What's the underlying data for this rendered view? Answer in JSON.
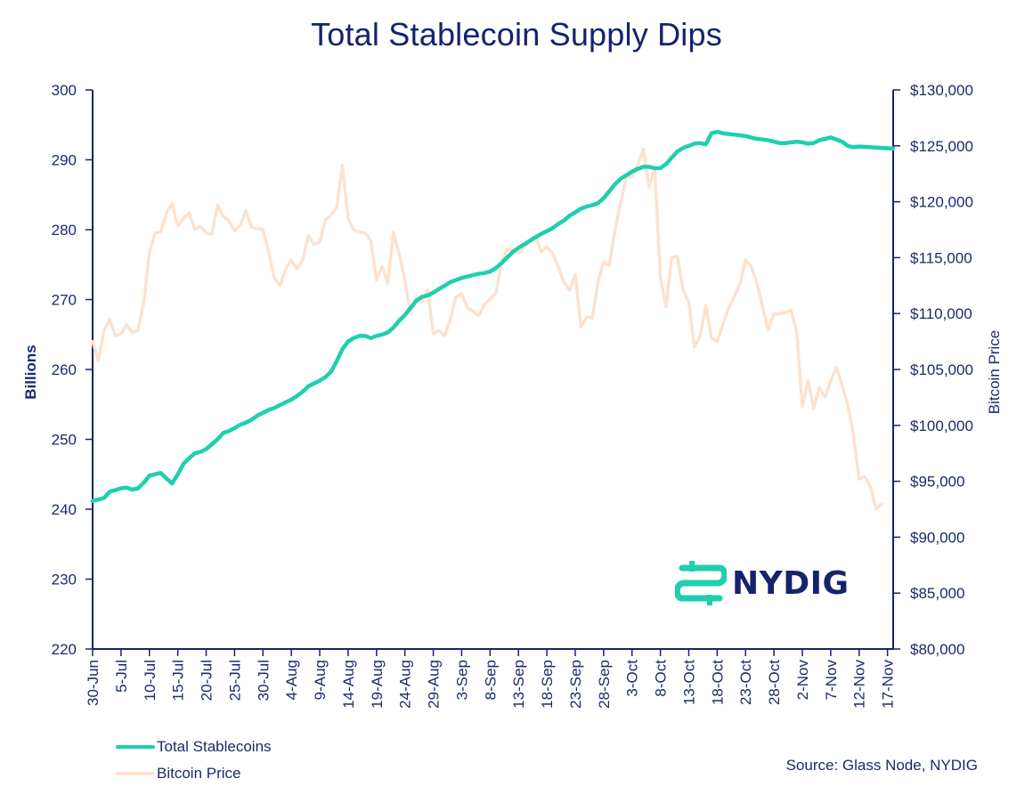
{
  "colors": {
    "stablecoins": "#1fcfae",
    "bitcoin": "#fbe2d0",
    "axis": "#16226b",
    "text": "#1b2a6b"
  },
  "legend": {
    "stablecoins_label": "Total Stablecoins",
    "bitcoin_label": "Bitcoin Price"
  },
  "source": "Source: Glass Node, NYDIG",
  "logo": {
    "text": "NYDIG",
    "icon": "nydig-dollar-icon"
  },
  "chart_data": {
    "type": "line",
    "title": "Total Stablecoin Supply Dips",
    "xlabel": "",
    "ylabel": "Billions",
    "y2label": "Bitcoin Price",
    "ylim": [
      220,
      300
    ],
    "y2lim": [
      80000,
      130000
    ],
    "yticks": [
      "220",
      "230",
      "240",
      "250",
      "260",
      "270",
      "280",
      "290",
      "300"
    ],
    "y2ticks": [
      "$80,000",
      "$85,000",
      "$90,000",
      "$95,000",
      "$100,000",
      "$105,000",
      "$110,000",
      "$115,000",
      "$120,000",
      "$125,000",
      "$130,000"
    ],
    "x_range_days": [
      0,
      141
    ],
    "xticks": [
      {
        "day": 0,
        "label": "30-Jun"
      },
      {
        "day": 5,
        "label": "5-Jul"
      },
      {
        "day": 10,
        "label": "10-Jul"
      },
      {
        "day": 15,
        "label": "15-Jul"
      },
      {
        "day": 20,
        "label": "20-Jul"
      },
      {
        "day": 25,
        "label": "25-Jul"
      },
      {
        "day": 30,
        "label": "30-Jul"
      },
      {
        "day": 35,
        "label": "4-Aug"
      },
      {
        "day": 40,
        "label": "9-Aug"
      },
      {
        "day": 45,
        "label": "14-Aug"
      },
      {
        "day": 50,
        "label": "19-Aug"
      },
      {
        "day": 55,
        "label": "24-Aug"
      },
      {
        "day": 60,
        "label": "29-Aug"
      },
      {
        "day": 65,
        "label": "3-Sep"
      },
      {
        "day": 70,
        "label": "8-Sep"
      },
      {
        "day": 75,
        "label": "13-Sep"
      },
      {
        "day": 80,
        "label": "18-Sep"
      },
      {
        "day": 85,
        "label": "23-Sep"
      },
      {
        "day": 90,
        "label": "28-Sep"
      },
      {
        "day": 95,
        "label": "3-Oct"
      },
      {
        "day": 100,
        "label": "8-Oct"
      },
      {
        "day": 105,
        "label": "13-Oct"
      },
      {
        "day": 110,
        "label": "18-Oct"
      },
      {
        "day": 115,
        "label": "23-Oct"
      },
      {
        "day": 120,
        "label": "28-Oct"
      },
      {
        "day": 125,
        "label": "2-Nov"
      },
      {
        "day": 130,
        "label": "7-Nov"
      },
      {
        "day": 135,
        "label": "12-Nov"
      },
      {
        "day": 140,
        "label": "17-Nov"
      }
    ],
    "series": [
      {
        "name": "Total Stablecoins",
        "axis": "left",
        "points": [
          [
            0,
            241.2
          ],
          [
            2,
            241.6
          ],
          [
            3,
            242.5
          ],
          [
            5,
            243.0
          ],
          [
            6,
            243.1
          ],
          [
            7,
            242.8
          ],
          [
            8,
            243.0
          ],
          [
            9,
            243.8
          ],
          [
            10,
            244.8
          ],
          [
            12,
            245.2
          ],
          [
            13,
            244.4
          ],
          [
            14,
            243.7
          ],
          [
            15,
            245.0
          ],
          [
            16,
            246.5
          ],
          [
            17,
            247.3
          ],
          [
            18,
            248.0
          ],
          [
            19,
            248.2
          ],
          [
            20,
            248.6
          ],
          [
            21,
            249.3
          ],
          [
            22,
            250.0
          ],
          [
            23,
            250.9
          ],
          [
            24,
            251.2
          ],
          [
            25,
            251.6
          ],
          [
            26,
            252.1
          ],
          [
            27,
            252.4
          ],
          [
            28,
            252.8
          ],
          [
            29,
            253.4
          ],
          [
            30,
            253.8
          ],
          [
            31,
            254.2
          ],
          [
            32,
            254.5
          ],
          [
            33,
            254.9
          ],
          [
            34,
            255.3
          ],
          [
            35,
            255.7
          ],
          [
            36,
            256.2
          ],
          [
            37,
            256.8
          ],
          [
            38,
            257.6
          ],
          [
            39,
            258.0
          ],
          [
            40,
            258.4
          ],
          [
            41,
            258.9
          ],
          [
            42,
            259.7
          ],
          [
            43,
            261.2
          ],
          [
            44,
            262.9
          ],
          [
            45,
            264.0
          ],
          [
            46,
            264.5
          ],
          [
            47,
            264.8
          ],
          [
            48,
            264.8
          ],
          [
            49,
            264.5
          ],
          [
            50,
            264.8
          ],
          [
            51,
            265.0
          ],
          [
            52,
            265.3
          ],
          [
            53,
            266.0
          ],
          [
            54,
            267.0
          ],
          [
            55,
            267.8
          ],
          [
            56,
            268.8
          ],
          [
            57,
            269.8
          ],
          [
            58,
            270.4
          ],
          [
            59,
            270.6
          ],
          [
            60,
            271.0
          ],
          [
            61,
            271.5
          ],
          [
            62,
            272.0
          ],
          [
            63,
            272.5
          ],
          [
            64,
            272.8
          ],
          [
            65,
            273.1
          ],
          [
            66,
            273.3
          ],
          [
            67,
            273.5
          ],
          [
            68,
            273.7
          ],
          [
            69,
            273.8
          ],
          [
            70,
            274.0
          ],
          [
            71,
            274.5
          ],
          [
            72,
            275.2
          ],
          [
            73,
            276.0
          ],
          [
            74,
            276.8
          ],
          [
            75,
            277.4
          ],
          [
            76,
            277.9
          ],
          [
            77,
            278.4
          ],
          [
            78,
            278.9
          ],
          [
            79,
            279.4
          ],
          [
            80,
            279.8
          ],
          [
            81,
            280.2
          ],
          [
            82,
            280.8
          ],
          [
            83,
            281.3
          ],
          [
            84,
            282.0
          ],
          [
            85,
            282.5
          ],
          [
            86,
            283.0
          ],
          [
            87,
            283.3
          ],
          [
            88,
            283.5
          ],
          [
            89,
            283.8
          ],
          [
            90,
            284.5
          ],
          [
            91,
            285.5
          ],
          [
            92,
            286.5
          ],
          [
            93,
            287.3
          ],
          [
            94,
            287.8
          ],
          [
            95,
            288.3
          ],
          [
            96,
            288.7
          ],
          [
            97,
            289.0
          ],
          [
            98,
            289.0
          ],
          [
            99,
            288.8
          ],
          [
            100,
            288.8
          ],
          [
            101,
            289.4
          ],
          [
            102,
            290.3
          ],
          [
            103,
            291.2
          ],
          [
            104,
            291.7
          ],
          [
            105,
            292.0
          ],
          [
            106,
            292.3
          ],
          [
            107,
            292.4
          ],
          [
            108,
            292.2
          ],
          [
            109,
            293.8
          ],
          [
            110,
            294.0
          ],
          [
            111,
            293.8
          ],
          [
            112,
            293.7
          ],
          [
            113,
            293.6
          ],
          [
            114,
            293.5
          ],
          [
            115,
            293.4
          ],
          [
            116,
            293.2
          ],
          [
            117,
            293.0
          ],
          [
            118,
            292.9
          ],
          [
            119,
            292.8
          ],
          [
            120,
            292.6
          ],
          [
            121,
            292.4
          ],
          [
            122,
            292.4
          ],
          [
            123,
            292.5
          ],
          [
            124,
            292.6
          ],
          [
            125,
            292.5
          ],
          [
            126,
            292.3
          ],
          [
            127,
            292.4
          ],
          [
            128,
            292.8
          ],
          [
            129,
            293.0
          ],
          [
            130,
            293.2
          ],
          [
            131,
            292.9
          ],
          [
            132,
            292.6
          ],
          [
            133,
            292.0
          ],
          [
            134,
            291.8
          ],
          [
            135,
            291.9
          ],
          [
            141,
            291.6
          ]
        ]
      },
      {
        "name": "Bitcoin Price",
        "axis": "right",
        "points": [
          [
            0,
            107500
          ],
          [
            1,
            105800
          ],
          [
            2,
            108500
          ],
          [
            3,
            109500
          ],
          [
            4,
            108000
          ],
          [
            5,
            108200
          ],
          [
            6,
            109000
          ],
          [
            7,
            108300
          ],
          [
            8,
            108500
          ],
          [
            9,
            111000
          ],
          [
            10,
            115500
          ],
          [
            11,
            117200
          ],
          [
            12,
            117300
          ],
          [
            13,
            119000
          ],
          [
            14,
            119800
          ],
          [
            15,
            117800
          ],
          [
            16,
            118500
          ],
          [
            17,
            119000
          ],
          [
            18,
            117500
          ],
          [
            19,
            117800
          ],
          [
            20,
            117200
          ],
          [
            21,
            117100
          ],
          [
            22,
            119700
          ],
          [
            23,
            118700
          ],
          [
            24,
            118300
          ],
          [
            25,
            117400
          ],
          [
            26,
            117900
          ],
          [
            27,
            119200
          ],
          [
            28,
            117700
          ],
          [
            29,
            117600
          ],
          [
            30,
            117500
          ],
          [
            31,
            115500
          ],
          [
            32,
            113200
          ],
          [
            33,
            112500
          ],
          [
            34,
            114000
          ],
          [
            35,
            114800
          ],
          [
            36,
            114000
          ],
          [
            37,
            114800
          ],
          [
            38,
            117000
          ],
          [
            39,
            116200
          ],
          [
            40,
            116400
          ],
          [
            41,
            118400
          ],
          [
            42,
            118800
          ],
          [
            43,
            119500
          ],
          [
            44,
            123300
          ],
          [
            45,
            118500
          ],
          [
            46,
            117500
          ],
          [
            47,
            117300
          ],
          [
            48,
            117200
          ],
          [
            49,
            116500
          ],
          [
            50,
            113000
          ],
          [
            51,
            114200
          ],
          [
            52,
            112700
          ],
          [
            53,
            117300
          ],
          [
            54,
            115300
          ],
          [
            55,
            113000
          ],
          [
            56,
            110000
          ],
          [
            57,
            111500
          ],
          [
            58,
            111000
          ],
          [
            59,
            112100
          ],
          [
            60,
            108200
          ],
          [
            61,
            108500
          ],
          [
            62,
            108000
          ],
          [
            63,
            109500
          ],
          [
            64,
            111500
          ],
          [
            65,
            111800
          ],
          [
            66,
            110500
          ],
          [
            67,
            110200
          ],
          [
            68,
            109800
          ],
          [
            69,
            110800
          ],
          [
            70,
            111300
          ],
          [
            71,
            111800
          ],
          [
            72,
            114500
          ],
          [
            73,
            115700
          ],
          [
            74,
            115800
          ],
          [
            75,
            115400
          ],
          [
            76,
            115900
          ],
          [
            77,
            116500
          ],
          [
            78,
            117000
          ],
          [
            79,
            115500
          ],
          [
            80,
            116000
          ],
          [
            81,
            115400
          ],
          [
            82,
            114200
          ],
          [
            83,
            112800
          ],
          [
            84,
            112100
          ],
          [
            85,
            113500
          ],
          [
            86,
            108800
          ],
          [
            87,
            109700
          ],
          [
            88,
            109600
          ],
          [
            89,
            112800
          ],
          [
            90,
            114600
          ],
          [
            91,
            114300
          ],
          [
            92,
            117500
          ],
          [
            93,
            119900
          ],
          [
            94,
            122200
          ],
          [
            95,
            122300
          ],
          [
            96,
            123300
          ],
          [
            97,
            124700
          ],
          [
            98,
            121300
          ],
          [
            99,
            123000
          ],
          [
            100,
            113200
          ],
          [
            101,
            110600
          ],
          [
            102,
            115000
          ],
          [
            103,
            115100
          ],
          [
            104,
            112100
          ],
          [
            105,
            111000
          ],
          [
            106,
            107000
          ],
          [
            107,
            108000
          ],
          [
            108,
            110700
          ],
          [
            109,
            107800
          ],
          [
            110,
            107500
          ],
          [
            111,
            109000
          ],
          [
            112,
            110500
          ],
          [
            113,
            111500
          ],
          [
            114,
            112600
          ],
          [
            115,
            114800
          ],
          [
            116,
            114200
          ],
          [
            117,
            112700
          ],
          [
            118,
            110600
          ],
          [
            119,
            108500
          ],
          [
            120,
            110000
          ],
          [
            121,
            110000
          ],
          [
            122,
            110100
          ],
          [
            123,
            110300
          ],
          [
            124,
            108400
          ],
          [
            125,
            101700
          ],
          [
            126,
            104000
          ],
          [
            127,
            101500
          ],
          [
            128,
            103400
          ],
          [
            129,
            102500
          ],
          [
            130,
            104000
          ],
          [
            131,
            105200
          ],
          [
            132,
            103600
          ],
          [
            133,
            101800
          ],
          [
            134,
            99200
          ],
          [
            135,
            95200
          ],
          [
            136,
            95400
          ],
          [
            137,
            94500
          ],
          [
            138,
            92500
          ],
          [
            139,
            93000
          ]
        ]
      }
    ]
  }
}
